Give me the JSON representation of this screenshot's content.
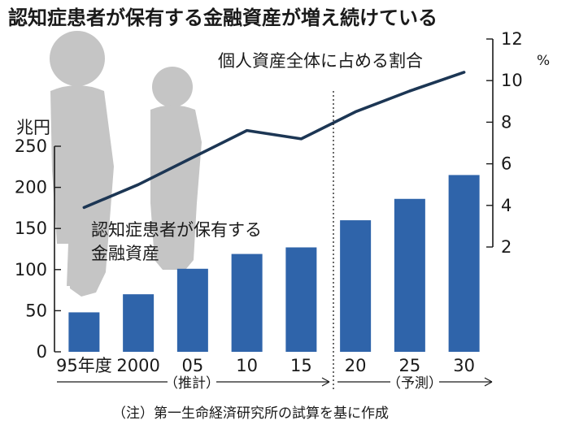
{
  "title": "認知症患者が保有する金融資産が増え続けている",
  "colors": {
    "bar": "#2f64aa",
    "line": "#1c3654",
    "silhouette": "#c5c5c5",
    "text": "#1a1a1a"
  },
  "decoration": {
    "silhouette": "elderly-couple-silhouette"
  },
  "chart_data": {
    "type": "bar",
    "categories": [
      "95年度",
      "2000",
      "05",
      "10",
      "15",
      "20",
      "25",
      "30"
    ],
    "series": [
      {
        "name": "認知症患者が保有する金融資産",
        "type": "bar",
        "axis": "left",
        "values": [
          48,
          70,
          101,
          119,
          127,
          160,
          186,
          215
        ]
      },
      {
        "name": "個人資産全体に占める割合",
        "type": "line",
        "axis": "right",
        "values": [
          3.9,
          5.0,
          6.3,
          7.6,
          7.2,
          8.5,
          9.5,
          10.4
        ]
      }
    ],
    "y_left": {
      "unit": "兆円",
      "ylim": [
        0,
        250
      ],
      "ticks": [
        "0",
        "50",
        "100",
        "150",
        "200",
        "250"
      ]
    },
    "y_right": {
      "unit": "%",
      "ylim": [
        2,
        12
      ],
      "ticks": [
        "2",
        "4",
        "6",
        "8",
        "10",
        "12"
      ]
    },
    "series_labels": {
      "bar": [
        "認知症患者が保有する",
        "金融資産"
      ],
      "line": "個人資産全体に占める割合"
    },
    "periods": [
      {
        "label": "（推計）",
        "categories": [
          "95年度",
          "2000",
          "05",
          "10",
          "15"
        ]
      },
      {
        "label": "（予測）",
        "categories": [
          "20",
          "25",
          "30"
        ]
      }
    ],
    "divider_between": [
      "15",
      "20"
    ],
    "grid": false
  },
  "footnote": "（注）第一生命経済研究所の試算を基に作成"
}
